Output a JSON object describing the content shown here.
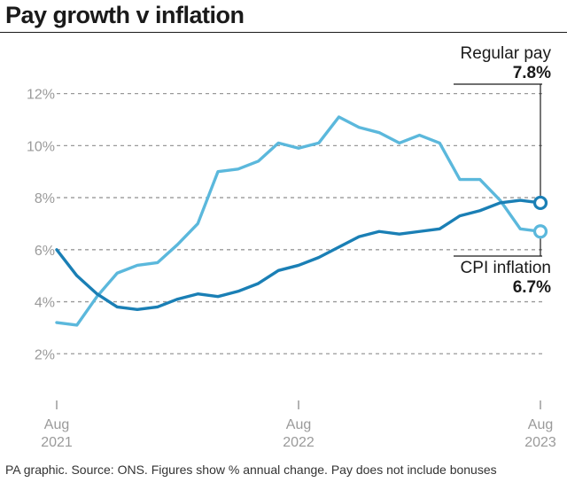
{
  "title": "Pay growth v inflation",
  "footer": "PA graphic. Source: ONS. Figures show % annual change. Pay does not include bonuses",
  "annotations": {
    "regular_pay": {
      "label": "Regular pay",
      "value": "7.8%"
    },
    "cpi": {
      "label": "CPI inflation",
      "value": "6.7%"
    }
  },
  "colors": {
    "regular_pay": "#1a7fb5",
    "cpi": "#5bb8dc",
    "text": "#1a1a1a",
    "grid": "#999999",
    "tick": "#9a9a9a"
  },
  "chart_data": {
    "type": "line",
    "title": "Pay growth v inflation",
    "x_ticks": [
      {
        "index": 0,
        "month": "Aug",
        "year": "2021"
      },
      {
        "index": 12,
        "month": "Aug",
        "year": "2022"
      },
      {
        "index": 24,
        "month": "Aug",
        "year": "2023"
      }
    ],
    "x": [
      "2021-08",
      "2021-09",
      "2021-10",
      "2021-11",
      "2021-12",
      "2022-01",
      "2022-02",
      "2022-03",
      "2022-04",
      "2022-05",
      "2022-06",
      "2022-07",
      "2022-08",
      "2022-09",
      "2022-10",
      "2022-11",
      "2022-12",
      "2023-01",
      "2023-02",
      "2023-03",
      "2023-04",
      "2023-05",
      "2023-06",
      "2023-07",
      "2023-08"
    ],
    "y_ticks": [
      "2%",
      "4%",
      "6%",
      "8%",
      "10%",
      "12%"
    ],
    "y_tick_values": [
      2,
      4,
      6,
      8,
      10,
      12
    ],
    "ylim": [
      0,
      12.6
    ],
    "grid": true,
    "series": [
      {
        "name": "Regular pay",
        "color": "#1a7fb5",
        "values": [
          6.0,
          5.0,
          4.3,
          3.8,
          3.7,
          3.8,
          4.1,
          4.3,
          4.2,
          4.4,
          4.7,
          5.2,
          5.4,
          5.7,
          6.1,
          6.5,
          6.7,
          6.6,
          6.7,
          6.8,
          7.3,
          7.5,
          7.8,
          7.9,
          7.8
        ]
      },
      {
        "name": "CPI inflation",
        "color": "#5bb8dc",
        "values": [
          3.2,
          3.1,
          4.2,
          5.1,
          5.4,
          5.5,
          6.2,
          7.0,
          9.0,
          9.1,
          9.4,
          10.1,
          9.9,
          10.1,
          11.1,
          10.7,
          10.5,
          10.1,
          10.4,
          10.1,
          8.7,
          8.7,
          7.9,
          6.8,
          6.7
        ]
      }
    ]
  }
}
